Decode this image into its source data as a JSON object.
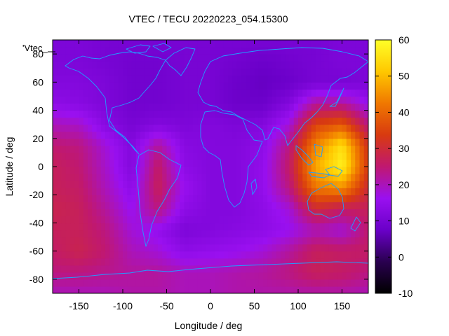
{
  "chart_data": {
    "type": "heatmap",
    "title": "VTEC / TECU 20220223_054.15300",
    "xlabel": "Longitude / deg",
    "ylabel": "Latitude / deg",
    "legend_key": "'Vtec_",
    "xlim": [
      -180,
      180
    ],
    "ylim": [
      -90,
      90
    ],
    "x_ticks": [
      -150,
      -100,
      -50,
      0,
      50,
      100,
      150
    ],
    "y_ticks": [
      -80,
      -60,
      -40,
      -20,
      0,
      20,
      40,
      60,
      80
    ],
    "colorbar": {
      "range": [
        -10,
        60
      ],
      "ticks": [
        -10,
        0,
        10,
        20,
        30,
        40,
        50,
        60
      ]
    },
    "colormap": [
      "#000000",
      "#2a0050",
      "#6a00c8",
      "#9a10f0",
      "#c01870",
      "#d83a10",
      "#f07800",
      "#ffc800",
      "#ffff28"
    ],
    "overlay_color": "#1fa0ff",
    "grid": false,
    "legend_position": "top-left",
    "lat_nodes": [
      -90,
      -75,
      -60,
      -45,
      -30,
      -15,
      0,
      15,
      30,
      45,
      60,
      75,
      90
    ],
    "lon_nodes": [
      -180,
      -150,
      -120,
      -90,
      -60,
      -30,
      0,
      30,
      60,
      90,
      120,
      150,
      180
    ],
    "values": [
      [
        20,
        20,
        20,
        21,
        21,
        20,
        20,
        21,
        21,
        21,
        21,
        21,
        20
      ],
      [
        24,
        24,
        23,
        22,
        22,
        20,
        20,
        21,
        22,
        24,
        27,
        26,
        24
      ],
      [
        26,
        28,
        25,
        20,
        18,
        14,
        15,
        16,
        18,
        22,
        27,
        26,
        26
      ],
      [
        27,
        27,
        24,
        18,
        15,
        11,
        12,
        13,
        14,
        16,
        20,
        18,
        25
      ],
      [
        28,
        27,
        22,
        16,
        24,
        14,
        12,
        12,
        14,
        18,
        30,
        26,
        27
      ],
      [
        27,
        26,
        20,
        14,
        27,
        16,
        12,
        12,
        15,
        24,
        42,
        45,
        30
      ],
      [
        27,
        25,
        19,
        12,
        26,
        14,
        12,
        12,
        15,
        26,
        48,
        58,
        33
      ],
      [
        25,
        24,
        18,
        12,
        22,
        13,
        12,
        12,
        14,
        24,
        44,
        55,
        32
      ],
      [
        20,
        19,
        13,
        10,
        12,
        11,
        12,
        11,
        12,
        18,
        35,
        38,
        24
      ],
      [
        14,
        13,
        11,
        9,
        9,
        10,
        10,
        8,
        8,
        12,
        22,
        22,
        16
      ],
      [
        12,
        12,
        11,
        9,
        9,
        10,
        10,
        8,
        7,
        8,
        10,
        10,
        11
      ],
      [
        11,
        11,
        10,
        9,
        9,
        10,
        10,
        9,
        8,
        9,
        10,
        11,
        11
      ],
      [
        11,
        11,
        10,
        10,
        10,
        10,
        10,
        10,
        10,
        10,
        10,
        11,
        11
      ]
    ]
  }
}
